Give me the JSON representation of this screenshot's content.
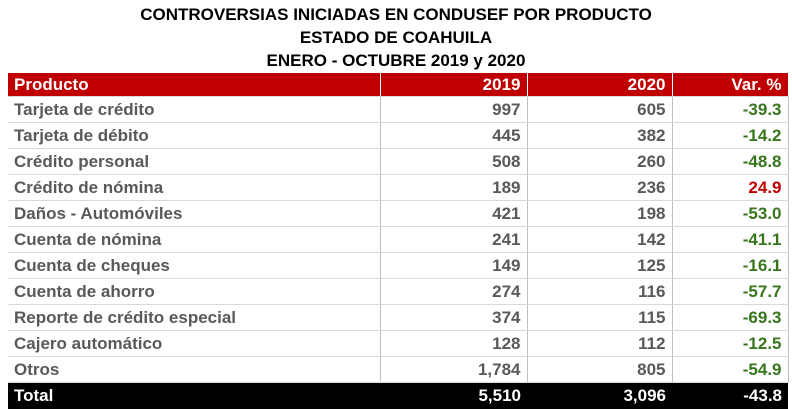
{
  "header": {
    "title": [
      "CONTROVERSIAS INICIADAS EN CONDUSEF POR PRODUCTO",
      "ESTADO DE COAHUILA",
      "ENERO - OCTUBRE 2019 y 2020"
    ]
  },
  "table": {
    "columns": [
      "Producto",
      "2019",
      "2020",
      "Var. %"
    ],
    "rows": [
      [
        "Tarjeta de crédito",
        "997",
        "605",
        "-39.3"
      ],
      [
        "Tarjeta de débito",
        "445",
        "382",
        "-14.2"
      ],
      [
        "Crédito personal",
        "508",
        "260",
        "-48.8"
      ],
      [
        "Crédito de nómina",
        "189",
        "236",
        "24.9"
      ],
      [
        "Daños - Automóviles",
        "421",
        "198",
        "-53.0"
      ],
      [
        "Cuenta de nómina",
        "241",
        "142",
        "-41.1"
      ],
      [
        "Cuenta de cheques",
        "149",
        "125",
        "-16.1"
      ],
      [
        "Cuenta de ahorro",
        "274",
        "116",
        "-57.7"
      ],
      [
        "Reporte de crédito especial",
        "374",
        "115",
        "-69.3"
      ],
      [
        "Cajero automático",
        "128",
        "112",
        "-12.5"
      ],
      [
        "Otros",
        "1,784",
        "805",
        "-54.9"
      ]
    ],
    "total": [
      "Total",
      "5,510",
      "3,096",
      "-43.8"
    ]
  }
}
